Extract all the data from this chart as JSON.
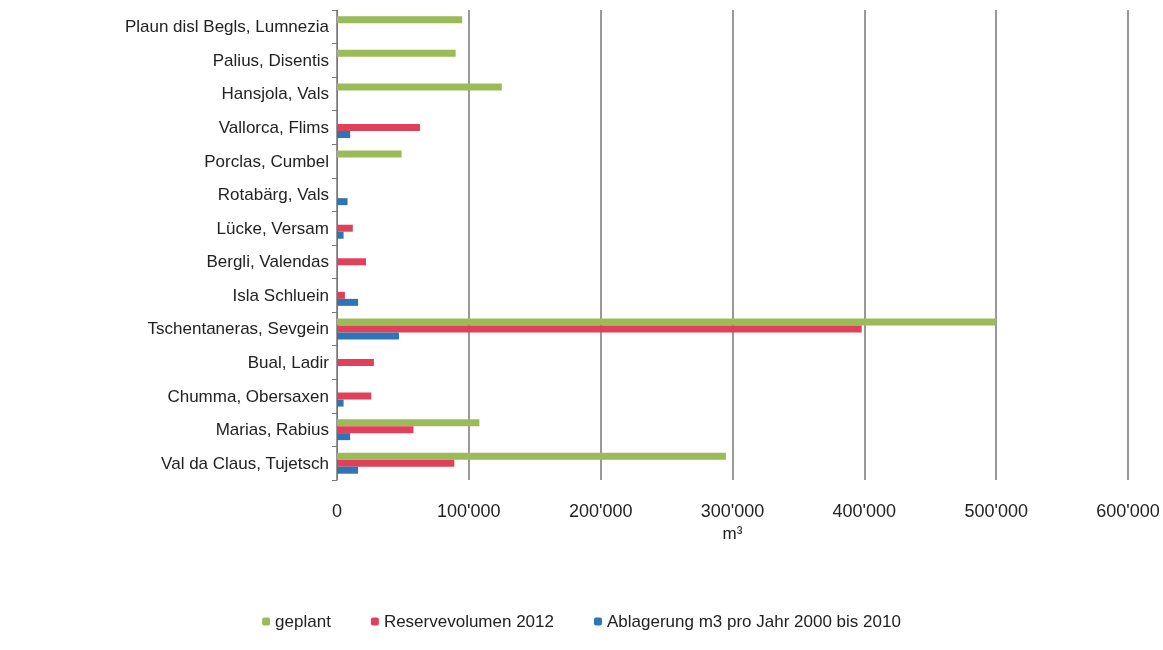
{
  "chart_data": {
    "type": "bar",
    "orientation": "horizontal",
    "xlabel": "m³",
    "categories": [
      "Plaun disl Begls, Lumnezia",
      "Palius, Disentis",
      "Hansjola, Vals",
      "Vallorca, Flims",
      "Porclas, Cumbel",
      "Rotabärg, Vals",
      "Lücke, Versam",
      "Bergli, Valendas",
      "Isla Schluein",
      "Tschentaneras, Sevgein",
      "Bual, Ladir",
      "Chumma, Obersaxen",
      "Marias, Rabius",
      "Val da Claus, Tujetsch"
    ],
    "series": [
      {
        "name": "geplant",
        "color": "#9bbb59",
        "values": [
          95000,
          90000,
          125000,
          null,
          49000,
          null,
          null,
          null,
          null,
          500000,
          null,
          null,
          108000,
          295000
        ]
      },
      {
        "name": "Reservevolumen 2012",
        "color": "#e0405a",
        "values": [
          null,
          null,
          null,
          63000,
          null,
          null,
          12000,
          22000,
          6000,
          398000,
          28000,
          26000,
          58000,
          89000
        ]
      },
      {
        "name": "Ablagerung m3 pro Jahr 2000 bis 2010",
        "color": "#2e75b6",
        "values": [
          null,
          null,
          null,
          10000,
          null,
          8000,
          5000,
          null,
          16000,
          47000,
          null,
          5000,
          10000,
          16000
        ]
      }
    ],
    "xlim": [
      0,
      600000
    ],
    "xticks": [
      {
        "value": 0,
        "label": "0"
      },
      {
        "value": 100000,
        "label": "100'000"
      },
      {
        "value": 200000,
        "label": "200'000"
      },
      {
        "value": 300000,
        "label": "300'000"
      },
      {
        "value": 400000,
        "label": "400'000"
      },
      {
        "value": 500000,
        "label": "500'000"
      },
      {
        "value": 600000,
        "label": "600'000"
      }
    ],
    "grid": "x",
    "legend": "bottom"
  }
}
